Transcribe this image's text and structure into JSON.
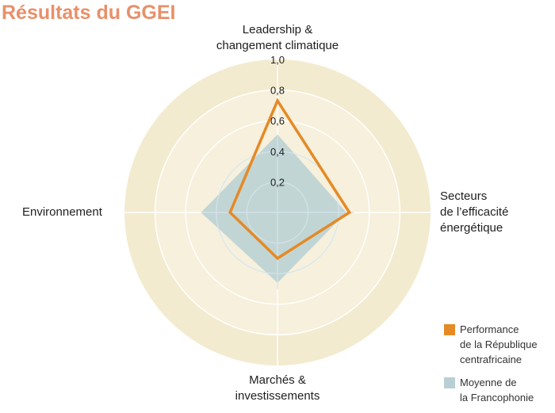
{
  "title": "Résultats du GGEI",
  "chart_data": {
    "type": "radar",
    "title": "Résultats du GGEI",
    "axes": [
      {
        "label_lines": [
          "Leadership &",
          "changement climatique"
        ]
      },
      {
        "label_lines": [
          "Secteurs",
          "de l’efficacité",
          "énergétique"
        ]
      },
      {
        "label_lines": [
          "Marchés &",
          "investissements"
        ]
      },
      {
        "label_lines": [
          "Environnement"
        ]
      }
    ],
    "categories": [
      "Leadership & changement climatique",
      "Secteurs de l’efficacité énergétique",
      "Marchés & investissements",
      "Environnement"
    ],
    "series": [
      {
        "name": "Performance de la République centrafricaine",
        "color": "#e58a25",
        "style": "line",
        "values": [
          0.73,
          0.47,
          0.3,
          0.31
        ]
      },
      {
        "name": "Moyenne de la Francophonie",
        "color": "#b8d0d4",
        "style": "fill",
        "values": [
          0.51,
          0.45,
          0.46,
          0.5
        ]
      }
    ],
    "rlim": [
      0,
      1.0
    ],
    "ticks": [
      "0,2",
      "0,4",
      "0,6",
      "0,8",
      "1,0"
    ],
    "tick_values": [
      0.2,
      0.4,
      0.6,
      0.8,
      1.0
    ],
    "legend_position": "bottom-right"
  },
  "labels": {
    "top": [
      "Leadership &",
      "changement climatique"
    ],
    "right": [
      "Secteurs",
      "de l’efficacité",
      "énergétique"
    ],
    "bottom": [
      "Marchés &",
      "investissements"
    ],
    "left": "Environnement"
  },
  "legend": [
    {
      "lines": [
        "Performance",
        "de la République",
        "centrafricaine"
      ],
      "color": "#e58a25"
    },
    {
      "lines": [
        "Moyenne de",
        "la Francophonie"
      ],
      "color": "#b8d0d4"
    }
  ],
  "colors": {
    "title": "#e8906a",
    "ring_outer": "#f3ebcf",
    "ring_inner": "#f6f0dc",
    "grid": "#ffffff",
    "orange": "#e58a25",
    "blue_fill": "#b8d0d4"
  }
}
